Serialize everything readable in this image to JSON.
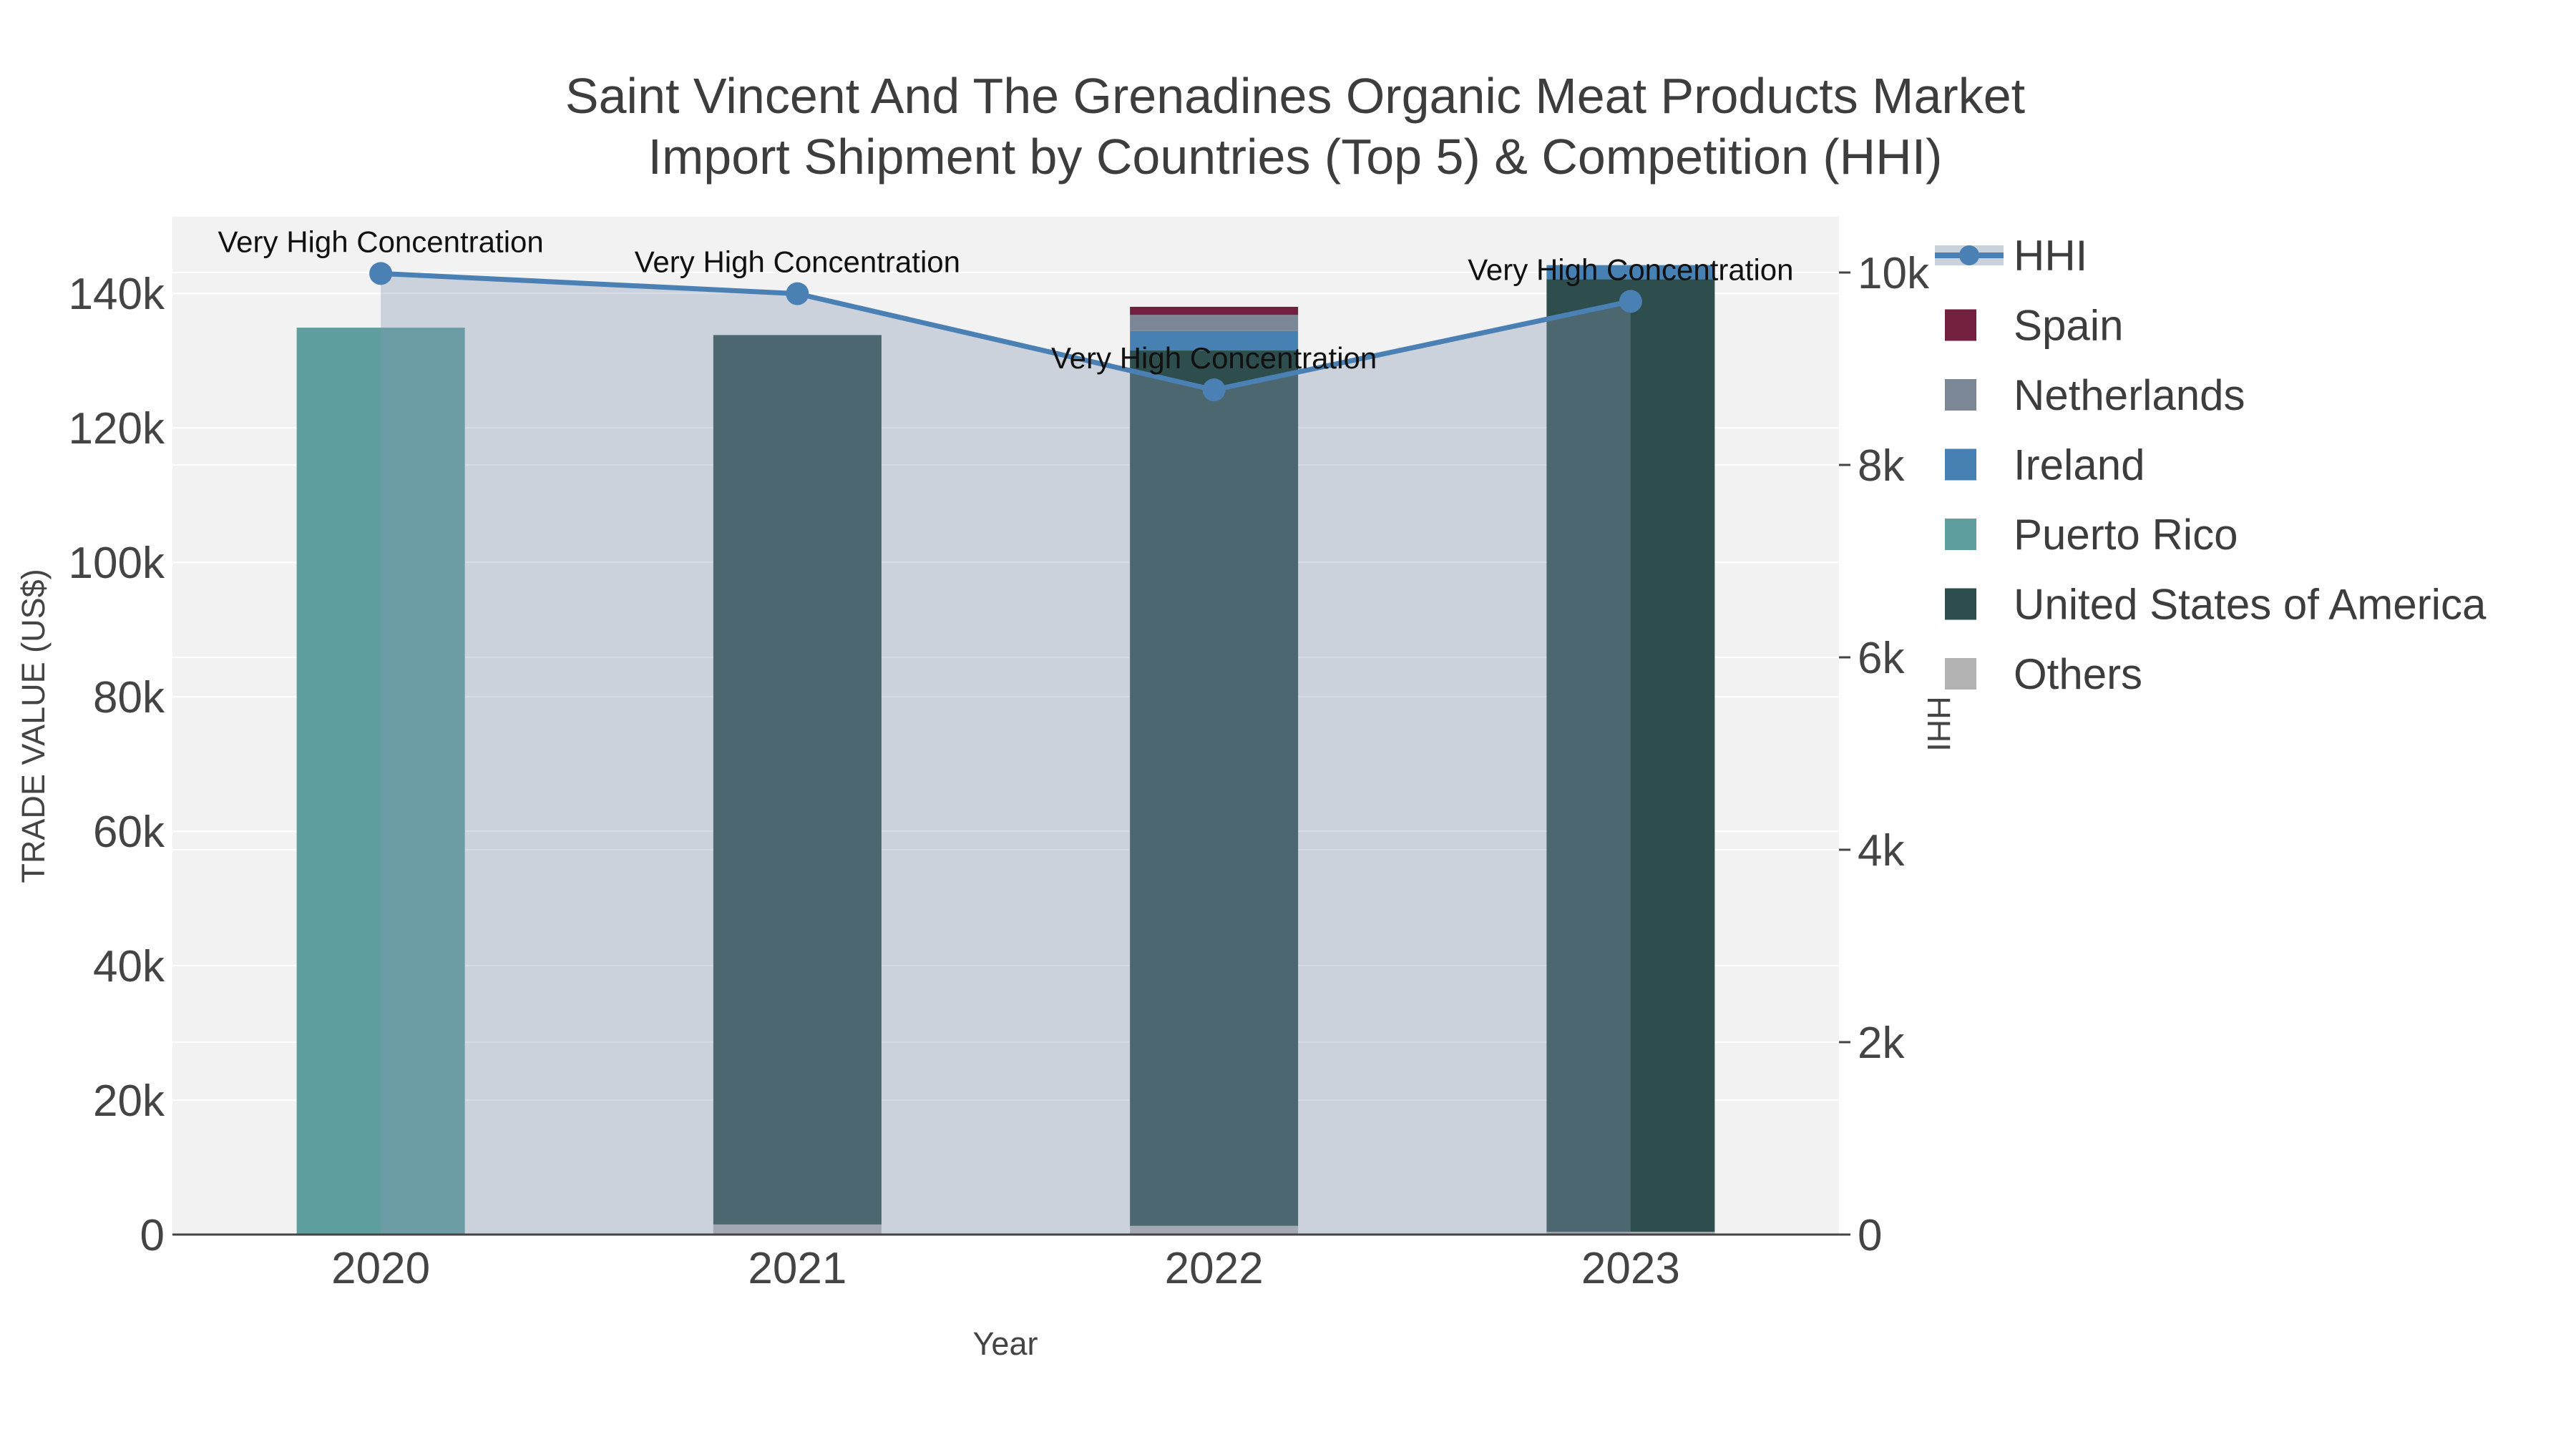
{
  "chart_data": {
    "type": "stacked-bar+line",
    "title_lines": [
      "Saint Vincent And The Grenadines Organic Meat Products Market",
      "Import Shipment by Countries (Top 5) & Competition (HHI)"
    ],
    "x_axis": {
      "title": "Year",
      "categories": [
        "2020",
        "2021",
        "2022",
        "2023"
      ]
    },
    "left_axis": {
      "title": "TRADE VALUE (US$)",
      "range": [
        0,
        151400
      ],
      "ticks": [
        {
          "v": 0,
          "label": "0"
        },
        {
          "v": 20000,
          "label": "20k"
        },
        {
          "v": 40000,
          "label": "40k"
        },
        {
          "v": 60000,
          "label": "60k"
        },
        {
          "v": 80000,
          "label": "80k"
        },
        {
          "v": 100000,
          "label": "100k"
        },
        {
          "v": 120000,
          "label": "120k"
        },
        {
          "v": 140000,
          "label": "140k"
        }
      ]
    },
    "right_axis": {
      "title": "HHI",
      "range": [
        0,
        10580
      ],
      "ticks": [
        {
          "v": 0,
          "label": "0"
        },
        {
          "v": 2000,
          "label": "2k"
        },
        {
          "v": 4000,
          "label": "4k"
        },
        {
          "v": 6000,
          "label": "6k"
        },
        {
          "v": 8000,
          "label": "8k"
        },
        {
          "v": 10000,
          "label": "10k"
        }
      ]
    },
    "series": [
      {
        "name": "Spain",
        "color": "#731f40",
        "values": [
          0,
          0,
          1200,
          0
        ]
      },
      {
        "name": "Netherlands",
        "color": "#7b8795",
        "values": [
          0,
          0,
          2400,
          0
        ]
      },
      {
        "name": "Ireland",
        "color": "#4781b4",
        "values": [
          0,
          0,
          2900,
          2100
        ]
      },
      {
        "name": "Puerto Rico",
        "color": "#5f9e9e",
        "values": [
          134900,
          0,
          0,
          0
        ]
      },
      {
        "name": "United States of America",
        "color": "#2e4e4d",
        "values": [
          0,
          132300,
          130200,
          141700
        ]
      },
      {
        "name": "Others",
        "color": "#b3b3b3",
        "values": [
          0,
          1500,
          1300,
          400
        ]
      }
    ],
    "stack_order": [
      5,
      4,
      3,
      2,
      1,
      0
    ],
    "hhi": {
      "name": "HHI",
      "color": "#4a80b4",
      "area_fill": "rgba(136,152,178,0.35)",
      "values": [
        9990,
        9780,
        8780,
        9700
      ],
      "annotations": [
        "Very High Concentration",
        "Very High Concentration",
        "Very High Concentration",
        "Very High Concentration"
      ]
    },
    "legend": [
      {
        "label": "HHI",
        "type": "line",
        "color": "#4a80b4",
        "band": "#c9d1dd"
      },
      {
        "label": "Spain",
        "type": "box",
        "color": "#731f40"
      },
      {
        "label": "Netherlands",
        "type": "box",
        "color": "#7b8795"
      },
      {
        "label": "Ireland",
        "type": "box",
        "color": "#4781b4"
      },
      {
        "label": "Puerto Rico",
        "type": "box",
        "color": "#5f9e9e"
      },
      {
        "label": "United States of America",
        "type": "box",
        "color": "#2e4e4d"
      },
      {
        "label": "Others",
        "type": "box",
        "color": "#b3b3b3"
      }
    ],
    "colors": {
      "plot_bg": "#f2f2f2",
      "grid": "#ffffff",
      "axis_line": "#444444"
    }
  }
}
